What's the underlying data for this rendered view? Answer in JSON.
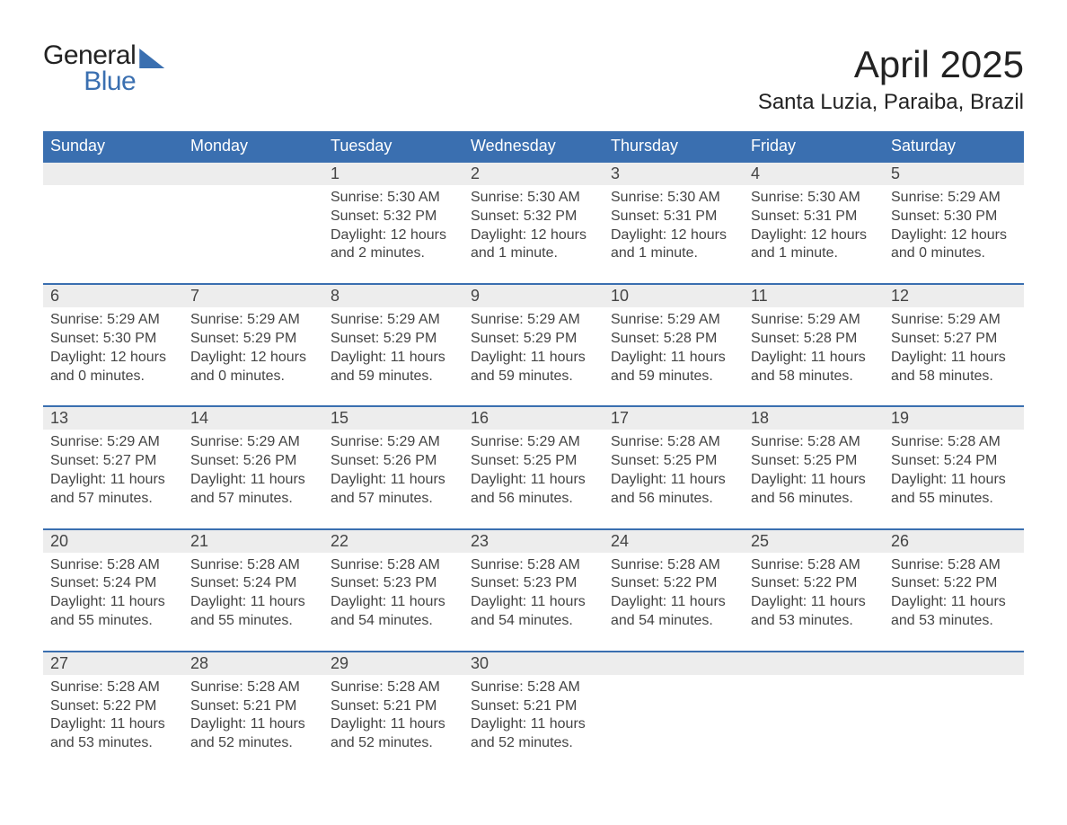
{
  "brand": {
    "word1": "General",
    "word2": "Blue",
    "accent_color": "#3a6fb0"
  },
  "title": "April 2025",
  "location": "Santa Luzia, Paraiba, Brazil",
  "day_names": [
    "Sunday",
    "Monday",
    "Tuesday",
    "Wednesday",
    "Thursday",
    "Friday",
    "Saturday"
  ],
  "colors": {
    "header_bg": "#3a6fb0",
    "header_text": "#ffffff",
    "datenum_bg": "#ededed",
    "text": "#444444",
    "page_bg": "#ffffff"
  },
  "typography": {
    "title_fontsize": 42,
    "location_fontsize": 24,
    "dayname_fontsize": 18,
    "datenum_fontsize": 18,
    "body_fontsize": 16
  },
  "weeks": [
    [
      null,
      null,
      {
        "n": "1",
        "sunrise": "5:30 AM",
        "sunset": "5:32 PM",
        "daylight": "12 hours and 2 minutes."
      },
      {
        "n": "2",
        "sunrise": "5:30 AM",
        "sunset": "5:32 PM",
        "daylight": "12 hours and 1 minute."
      },
      {
        "n": "3",
        "sunrise": "5:30 AM",
        "sunset": "5:31 PM",
        "daylight": "12 hours and 1 minute."
      },
      {
        "n": "4",
        "sunrise": "5:30 AM",
        "sunset": "5:31 PM",
        "daylight": "12 hours and 1 minute."
      },
      {
        "n": "5",
        "sunrise": "5:29 AM",
        "sunset": "5:30 PM",
        "daylight": "12 hours and 0 minutes."
      }
    ],
    [
      {
        "n": "6",
        "sunrise": "5:29 AM",
        "sunset": "5:30 PM",
        "daylight": "12 hours and 0 minutes."
      },
      {
        "n": "7",
        "sunrise": "5:29 AM",
        "sunset": "5:29 PM",
        "daylight": "12 hours and 0 minutes."
      },
      {
        "n": "8",
        "sunrise": "5:29 AM",
        "sunset": "5:29 PM",
        "daylight": "11 hours and 59 minutes."
      },
      {
        "n": "9",
        "sunrise": "5:29 AM",
        "sunset": "5:29 PM",
        "daylight": "11 hours and 59 minutes."
      },
      {
        "n": "10",
        "sunrise": "5:29 AM",
        "sunset": "5:28 PM",
        "daylight": "11 hours and 59 minutes."
      },
      {
        "n": "11",
        "sunrise": "5:29 AM",
        "sunset": "5:28 PM",
        "daylight": "11 hours and 58 minutes."
      },
      {
        "n": "12",
        "sunrise": "5:29 AM",
        "sunset": "5:27 PM",
        "daylight": "11 hours and 58 minutes."
      }
    ],
    [
      {
        "n": "13",
        "sunrise": "5:29 AM",
        "sunset": "5:27 PM",
        "daylight": "11 hours and 57 minutes."
      },
      {
        "n": "14",
        "sunrise": "5:29 AM",
        "sunset": "5:26 PM",
        "daylight": "11 hours and 57 minutes."
      },
      {
        "n": "15",
        "sunrise": "5:29 AM",
        "sunset": "5:26 PM",
        "daylight": "11 hours and 57 minutes."
      },
      {
        "n": "16",
        "sunrise": "5:29 AM",
        "sunset": "5:25 PM",
        "daylight": "11 hours and 56 minutes."
      },
      {
        "n": "17",
        "sunrise": "5:28 AM",
        "sunset": "5:25 PM",
        "daylight": "11 hours and 56 minutes."
      },
      {
        "n": "18",
        "sunrise": "5:28 AM",
        "sunset": "5:25 PM",
        "daylight": "11 hours and 56 minutes."
      },
      {
        "n": "19",
        "sunrise": "5:28 AM",
        "sunset": "5:24 PM",
        "daylight": "11 hours and 55 minutes."
      }
    ],
    [
      {
        "n": "20",
        "sunrise": "5:28 AM",
        "sunset": "5:24 PM",
        "daylight": "11 hours and 55 minutes."
      },
      {
        "n": "21",
        "sunrise": "5:28 AM",
        "sunset": "5:24 PM",
        "daylight": "11 hours and 55 minutes."
      },
      {
        "n": "22",
        "sunrise": "5:28 AM",
        "sunset": "5:23 PM",
        "daylight": "11 hours and 54 minutes."
      },
      {
        "n": "23",
        "sunrise": "5:28 AM",
        "sunset": "5:23 PM",
        "daylight": "11 hours and 54 minutes."
      },
      {
        "n": "24",
        "sunrise": "5:28 AM",
        "sunset": "5:22 PM",
        "daylight": "11 hours and 54 minutes."
      },
      {
        "n": "25",
        "sunrise": "5:28 AM",
        "sunset": "5:22 PM",
        "daylight": "11 hours and 53 minutes."
      },
      {
        "n": "26",
        "sunrise": "5:28 AM",
        "sunset": "5:22 PM",
        "daylight": "11 hours and 53 minutes."
      }
    ],
    [
      {
        "n": "27",
        "sunrise": "5:28 AM",
        "sunset": "5:22 PM",
        "daylight": "11 hours and 53 minutes."
      },
      {
        "n": "28",
        "sunrise": "5:28 AM",
        "sunset": "5:21 PM",
        "daylight": "11 hours and 52 minutes."
      },
      {
        "n": "29",
        "sunrise": "5:28 AM",
        "sunset": "5:21 PM",
        "daylight": "11 hours and 52 minutes."
      },
      {
        "n": "30",
        "sunrise": "5:28 AM",
        "sunset": "5:21 PM",
        "daylight": "11 hours and 52 minutes."
      },
      null,
      null,
      null
    ]
  ],
  "labels": {
    "sunrise_prefix": "Sunrise: ",
    "sunset_prefix": "Sunset: ",
    "daylight_prefix": "Daylight: "
  }
}
